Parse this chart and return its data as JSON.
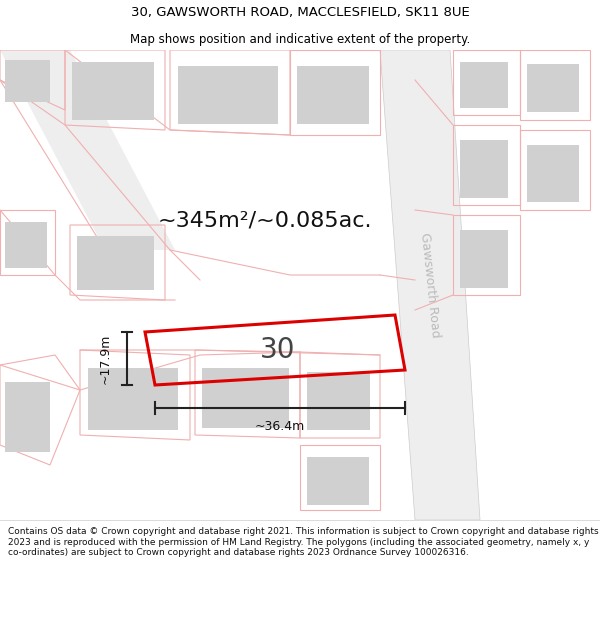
{
  "title_line1": "30, GAWSWORTH ROAD, MACCLESFIELD, SK11 8UE",
  "title_line2": "Map shows position and indicative extent of the property.",
  "footer_text": "Contains OS data © Crown copyright and database right 2021. This information is subject to Crown copyright and database rights 2023 and is reproduced with the permission of HM Land Registry. The polygons (including the associated geometry, namely x, y co-ordinates) are subject to Crown copyright and database rights 2023 Ordnance Survey 100026316.",
  "area_text": "~345m²/~0.085ac.",
  "width_text": "~36.4m",
  "height_text": "~17.9m",
  "number_text": "30",
  "road_label": "Gawsworth Road",
  "faint": "#f0b0b0",
  "bldg": "#d0d0d0",
  "red": "#dd0000",
  "dark": "#222222",
  "road_fill": "#eeeeee",
  "title_fs": 9.5,
  "subtitle_fs": 8.5,
  "footer_fs": 6.5,
  "area_fs": 16,
  "dim_fs": 9,
  "num_fs": 20,
  "road_label_fs": 9
}
